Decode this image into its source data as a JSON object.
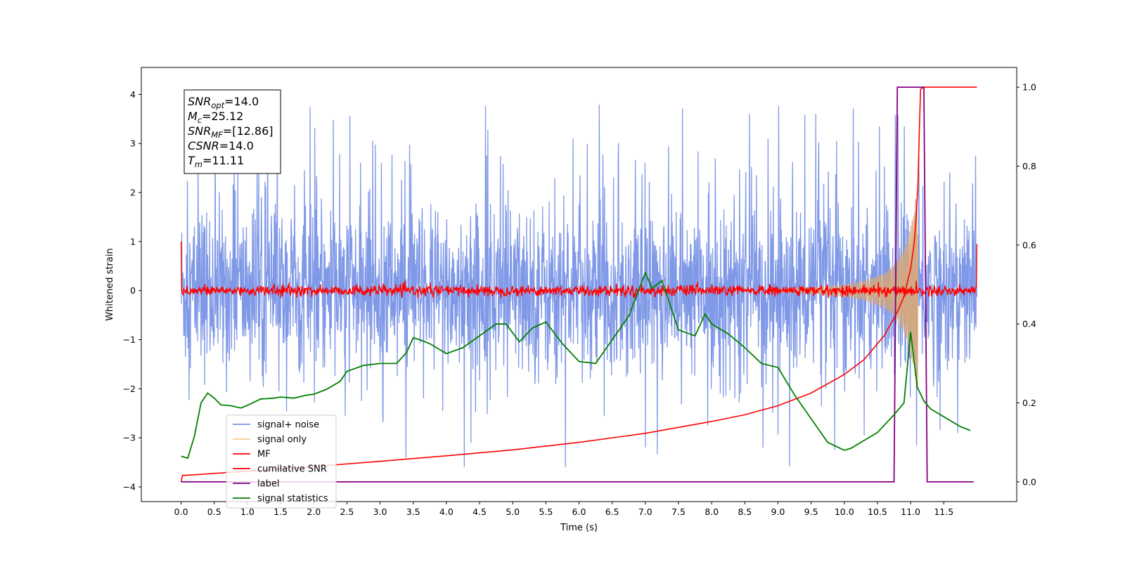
{
  "chart_data": {
    "type": "line",
    "xlabel": "Time (s)",
    "ylabel_left": "Whitened strain",
    "ylabel_right": "",
    "xlim": [
      -0.6,
      12.6
    ],
    "ylim_left": [
      -4.3,
      4.55
    ],
    "ylim_right": [
      -0.05,
      1.05
    ],
    "x_ticks": [
      0.0,
      0.5,
      1.0,
      1.5,
      2.0,
      2.5,
      3.0,
      3.5,
      4.0,
      4.5,
      5.0,
      5.5,
      6.0,
      6.5,
      7.0,
      7.5,
      8.0,
      8.5,
      9.0,
      9.5,
      10.0,
      10.5,
      11.0,
      11.5
    ],
    "x_tick_labels": [
      "0.0",
      "0.5",
      "1.0",
      "1.5",
      "2.0",
      "2.5",
      "3.0",
      "3.5",
      "4.0",
      "4.5",
      "5.0",
      "5.5",
      "6.0",
      "6.5",
      "7.0",
      "7.5",
      "8.0",
      "8.5",
      "9.0",
      "9.5",
      "10.0",
      "10.5",
      "11.0",
      "11.5"
    ],
    "y_ticks_left": [
      -4,
      -3,
      -2,
      -1,
      0,
      1,
      2,
      3,
      4
    ],
    "y_tick_labels_left": [
      "−4",
      "−3",
      "−2",
      "−1",
      "0",
      "1",
      "2",
      "3",
      "4"
    ],
    "y_ticks_right": [
      0.0,
      0.2,
      0.4,
      0.6,
      0.8,
      1.0
    ],
    "y_tick_labels_right": [
      "0.0",
      "0.2",
      "0.4",
      "0.6",
      "0.8",
      "1.0"
    ],
    "grid": false,
    "legend_position": "lower-left",
    "colors": {
      "signal_noise": "#7892e6",
      "signal_only": "#d8a878",
      "mf": "#ff0000",
      "cumulative_snr": "#ff0000",
      "label": "#800080",
      "signal_statistics": "#008000"
    },
    "series": [
      {
        "name": "signal+ noise",
        "axis": "left",
        "description_range": [
          0.0,
          12.0
        ],
        "approx_envelope": [
          -3.6,
          4.15
        ]
      },
      {
        "name": "signal only",
        "axis": "left",
        "x": [
          9.0,
          9.5,
          10.0,
          10.3,
          10.6,
          10.8,
          10.95,
          11.05,
          11.11
        ],
        "amplitude": [
          0.03,
          0.06,
          0.12,
          0.2,
          0.35,
          0.6,
          1.0,
          1.6,
          2.2
        ]
      },
      {
        "name": "MF",
        "axis": "left",
        "edge_values": [
          1.0,
          0.95
        ],
        "approx_range": [
          -0.15,
          0.2
        ]
      },
      {
        "name": "cumilative SNR",
        "axis": "right",
        "x": [
          0.0,
          0.02,
          1.0,
          2.0,
          3.0,
          4.0,
          5.0,
          6.0,
          7.0,
          8.0,
          8.5,
          9.0,
          9.5,
          10.0,
          10.3,
          10.6,
          10.8,
          10.9,
          11.0,
          11.05,
          11.08,
          11.11,
          11.13,
          11.15,
          11.2,
          12.0
        ],
        "y": [
          0.0,
          0.016,
          0.027,
          0.039,
          0.052,
          0.066,
          0.081,
          0.1,
          0.123,
          0.153,
          0.17,
          0.193,
          0.225,
          0.272,
          0.31,
          0.37,
          0.43,
          0.47,
          0.54,
          0.6,
          0.66,
          0.75,
          0.88,
          0.995,
          1.0,
          1.0
        ]
      },
      {
        "name": "label",
        "axis": "right",
        "x": [
          0.0,
          10.75,
          10.8,
          11.2,
          11.25,
          11.95
        ],
        "y": [
          0.0,
          0.0,
          1.0,
          1.0,
          0.0,
          0.0
        ]
      },
      {
        "name": "signal statistics",
        "axis": "right",
        "x": [
          0.0,
          0.1,
          0.2,
          0.3,
          0.4,
          0.5,
          0.6,
          0.75,
          0.9,
          1.0,
          1.2,
          1.4,
          1.5,
          1.7,
          1.9,
          2.0,
          2.2,
          2.4,
          2.5,
          2.75,
          3.0,
          3.25,
          3.4,
          3.5,
          3.6,
          3.75,
          4.0,
          4.25,
          4.5,
          4.75,
          4.9,
          5.1,
          5.3,
          5.5,
          5.75,
          6.0,
          6.25,
          6.5,
          6.75,
          7.0,
          7.1,
          7.25,
          7.5,
          7.75,
          7.9,
          8.0,
          8.25,
          8.5,
          8.75,
          9.0,
          9.25,
          9.5,
          9.75,
          10.0,
          10.1,
          10.25,
          10.5,
          10.75,
          10.9,
          11.0,
          11.1,
          11.2,
          11.3,
          11.5,
          11.75,
          11.9
        ],
        "y": [
          0.065,
          0.06,
          0.115,
          0.2,
          0.225,
          0.212,
          0.195,
          0.193,
          0.187,
          0.194,
          0.21,
          0.212,
          0.215,
          0.212,
          0.22,
          0.222,
          0.235,
          0.255,
          0.28,
          0.295,
          0.3,
          0.3,
          0.328,
          0.365,
          0.36,
          0.35,
          0.325,
          0.34,
          0.37,
          0.4,
          0.4,
          0.355,
          0.39,
          0.405,
          0.35,
          0.305,
          0.3,
          0.36,
          0.42,
          0.53,
          0.49,
          0.51,
          0.385,
          0.37,
          0.425,
          0.4,
          0.375,
          0.34,
          0.3,
          0.29,
          0.22,
          0.16,
          0.1,
          0.08,
          0.085,
          0.1,
          0.125,
          0.17,
          0.2,
          0.38,
          0.24,
          0.205,
          0.185,
          0.165,
          0.14,
          0.13
        ]
      }
    ],
    "annotation_lines": [
      {
        "base": "SNR",
        "sub": "opt",
        "value": "=14.0"
      },
      {
        "base": "M",
        "sub": "c",
        "value": "=25.12"
      },
      {
        "base": "SNR",
        "sub": "MF",
        "value": "=[12.86]"
      },
      {
        "base": "CSNR",
        "sub": "",
        "value": "=14.0"
      },
      {
        "base": "T",
        "sub": "m",
        "value": "=11.11"
      }
    ],
    "legend": [
      {
        "label": "signal+ noise",
        "color": "#7892e6"
      },
      {
        "label": "signal only",
        "color": "#f5d08a"
      },
      {
        "label": "MF",
        "color": "#ff0000"
      },
      {
        "label": "cumilative SNR",
        "color": "#ff0000"
      },
      {
        "label": "label",
        "color": "#800080"
      },
      {
        "label": "signal statistics",
        "color": "#008000"
      }
    ]
  }
}
